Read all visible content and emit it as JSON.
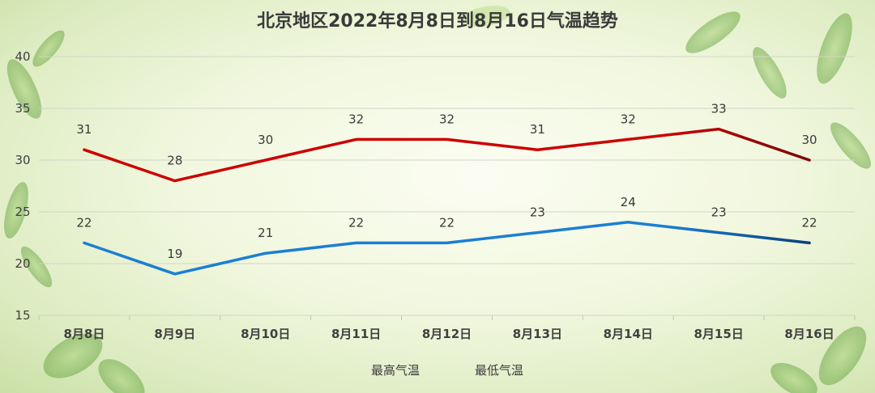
{
  "chart_data": {
    "type": "line",
    "title": "北京地区2022年8月8日到8月16日气温趋势",
    "categories": [
      "8月8日",
      "8月9日",
      "8月10日",
      "8月11日",
      "8月12日",
      "8月13日",
      "8月14日",
      "8月15日",
      "8月16日"
    ],
    "series": [
      {
        "name": "最高气温",
        "values": [
          31,
          28,
          30,
          32,
          32,
          31,
          32,
          33,
          30
        ],
        "color": "#cc0000",
        "color_end": "#7a0a0a"
      },
      {
        "name": "最低气温",
        "values": [
          22,
          19,
          21,
          22,
          22,
          23,
          24,
          23,
          22
        ],
        "color": "#1a7fd4",
        "color_end": "#0f3f78"
      }
    ],
    "y_ticks": [
      "15",
      "20",
      "25",
      "30",
      "35",
      "40"
    ],
    "ylim": [
      15,
      40
    ],
    "xlabel": "",
    "ylabel": "",
    "grid": true,
    "legend": "bottom-center"
  }
}
